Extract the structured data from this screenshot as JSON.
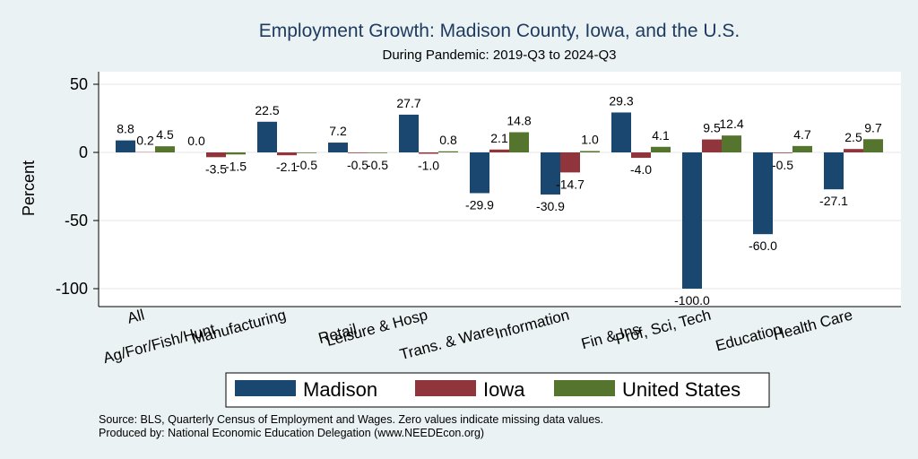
{
  "chart_data": {
    "type": "bar",
    "title": "Employment Growth: Madison County, Iowa, and the U.S.",
    "subtitle": "During Pandemic: 2019-Q3 to 2024-Q3",
    "ylabel": "Percent",
    "xlabel": "",
    "ylim": [
      -110,
      55
    ],
    "yticks": [
      50,
      0,
      -50,
      -100
    ],
    "grid": true,
    "legend_position": "bottom",
    "categories": [
      "All",
      "Ag/For/Fish/Hunt",
      "Manufacturing",
      "Retail",
      "Leisure & Hosp",
      "Trans. & Ware.",
      "Information",
      "Fin & Ins",
      "Prof, Sci, Tech",
      "Education",
      "Health Care"
    ],
    "series": [
      {
        "name": "Madison",
        "color": "#1a476f",
        "values": [
          8.8,
          0.0,
          22.5,
          7.2,
          27.7,
          -29.9,
          -30.9,
          29.3,
          -100.0,
          -60.0,
          -27.1
        ],
        "labels": [
          "8.8",
          "0.0",
          "22.5",
          "7.2",
          "27.7",
          "-29.9",
          "-30.9",
          "29.3",
          "-100.0",
          "-60.0",
          "-27.1"
        ]
      },
      {
        "name": "Iowa",
        "color": "#90353b",
        "values": [
          0.2,
          -3.5,
          -2.1,
          -0.5,
          -1.0,
          2.1,
          -14.7,
          -4.0,
          9.5,
          -0.5,
          2.5
        ],
        "labels": [
          "0.2",
          "-3.5",
          "-2.1",
          "-0.5",
          "-1.0",
          "2.1",
          "-14.7",
          "-4.0",
          "9.5",
          "-0.5",
          "2.5"
        ]
      },
      {
        "name": "United States",
        "color": "#55752f",
        "values": [
          4.5,
          -1.5,
          -0.5,
          -0.5,
          0.8,
          14.8,
          1.0,
          4.1,
          12.4,
          4.7,
          9.7
        ],
        "labels": [
          "4.5",
          "-1.5",
          "-0.5",
          "-0.5",
          "0.8",
          "14.8",
          "1.0",
          "4.1",
          "12.4",
          "4.7",
          "9.7"
        ]
      }
    ]
  },
  "notes": {
    "source": "Source: BLS, Quarterly Census of Employment and Wages. Zero values indicate missing data values.",
    "produced_by": "Produced by: National Economic Education Delegation (www.NEEDEcon.org)"
  }
}
